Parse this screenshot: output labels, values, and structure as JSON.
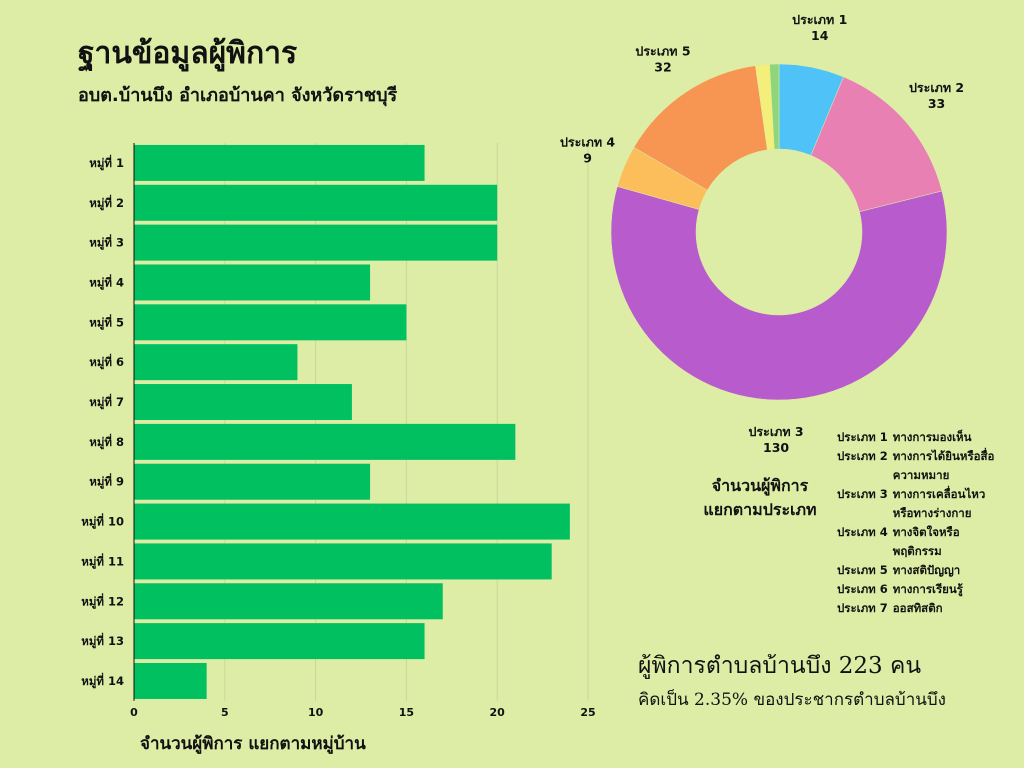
{
  "header": {
    "title": "ฐานข้อมูลผู้พิการ",
    "subtitle": "อบต.บ้านบึง อำเภอบ้านคา จังหวัดราชบุรี"
  },
  "chart_data": [
    {
      "type": "bar",
      "orientation": "horizontal",
      "categories": [
        "หมู่ที่ 1",
        "หมู่ที่ 2",
        "หมู่ที่ 3",
        "หมู่ที่ 4",
        "หมู่ที่ 5",
        "หมู่ที่ 6",
        "หมู่ที่ 7",
        "หมู่ที่ 8",
        "หมู่ที่ 9",
        "หมู่ที่ 10",
        "หมู่ที่ 11",
        "หมู่ที่ 12",
        "หมู่ที่ 13",
        "หมู่ที่ 14"
      ],
      "values": [
        16,
        20,
        20,
        13,
        15,
        9,
        12,
        21,
        13,
        24,
        23,
        17,
        16,
        4
      ],
      "xlabel": "จำนวนผู้พิการ แยกตามหมู่บ้าน",
      "xlim": [
        0,
        25
      ],
      "xticks": [
        0,
        5,
        10,
        15,
        20,
        25
      ],
      "grid": true,
      "color": "#00c060"
    },
    {
      "type": "pie",
      "donut": true,
      "caption": [
        "จำนวนผู้พิการ",
        "แยกตามประเภท"
      ],
      "slices": [
        {
          "label": "ประเภท 1",
          "value": 14,
          "color": "#4fc3f7",
          "show_label": true
        },
        {
          "label": "ประเภท 2",
          "value": 33,
          "color": "#e880b4",
          "show_label": true
        },
        {
          "label": "ประเภท 3",
          "value": 130,
          "color": "#b85ccd",
          "show_label": true
        },
        {
          "label": "ประเภท 4",
          "value": 9,
          "color": "#fcbe5a",
          "show_label": true
        },
        {
          "label": "ประเภท 5",
          "value": 32,
          "color": "#f79552",
          "show_label": true
        },
        {
          "label": "",
          "value": 3,
          "color": "#f4ee7a",
          "show_label": false
        },
        {
          "label": "",
          "value": 2,
          "color": "#8fd67a",
          "show_label": false
        }
      ]
    }
  ],
  "legend": [
    {
      "type": "ประเภท 1",
      "desc": "ทางการมองเห็น"
    },
    {
      "type": "ประเภท 2",
      "desc": "ทางการได้ยินหรือสื่อความหมาย"
    },
    {
      "type": "ประเภท 3",
      "desc": "ทางการเคลื่อนไหวหรือทางร่างกาย"
    },
    {
      "type": "ประเภท 4",
      "desc": "ทางจิตใจหรือพฤติกรรม"
    },
    {
      "type": "ประเภท 5",
      "desc": "ทางสติปัญญา"
    },
    {
      "type": "ประเภท 6",
      "desc": "ทางการเรียนรู้"
    },
    {
      "type": "ประเภท 7",
      "desc": "ออสทิสติก"
    }
  ],
  "summary": {
    "line1": "ผู้พิการตำบลบ้านบึง 223 คน",
    "line2": "คิดเป็น 2.35% ของประชากรตำบลบ้านบึง"
  }
}
